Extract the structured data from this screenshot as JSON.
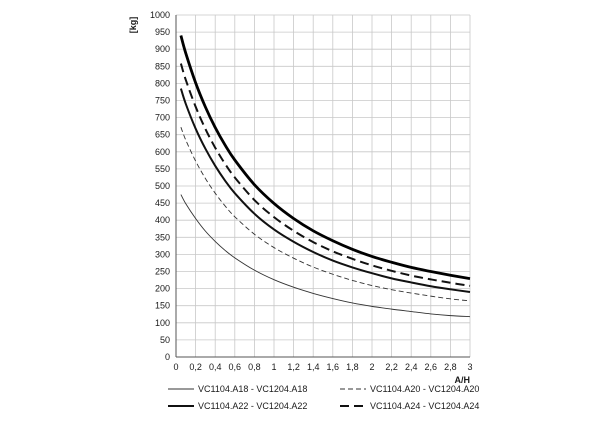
{
  "chart_data": {
    "type": "line",
    "ylabel": "[kg]",
    "xlabel": "A/H",
    "xlim": [
      0,
      3
    ],
    "ylim": [
      0,
      1000
    ],
    "grid": true,
    "legend_position": "bottom",
    "x_ticks": [
      "0",
      "0,2",
      "0,4",
      "0,6",
      "0,8",
      "1",
      "1,2",
      "1,4",
      "1,6",
      "1,8",
      "2",
      "2,2",
      "2,4",
      "2,6",
      "2,8",
      "3"
    ],
    "y_ticks": [
      "0",
      "50",
      "100",
      "150",
      "200",
      "250",
      "300",
      "350",
      "400",
      "450",
      "500",
      "550",
      "600",
      "650",
      "700",
      "750",
      "800",
      "850",
      "900",
      "950",
      "1000"
    ],
    "x": [
      0.05,
      0.1,
      0.2,
      0.3,
      0.4,
      0.5,
      0.6,
      0.8,
      1.0,
      1.2,
      1.4,
      1.6,
      1.8,
      2.0,
      2.2,
      2.4,
      2.6,
      2.8,
      3.0
    ],
    "series": [
      {
        "name": "VC1104.A18 - VC1204.A18",
        "style": "thin-solid",
        "color": "#333333",
        "values": [
          475,
          448,
          405,
          368,
          338,
          312,
          290,
          254,
          226,
          204,
          186,
          171,
          158,
          148,
          140,
          133,
          126,
          121,
          118
        ]
      },
      {
        "name": "VC1104.A20 - VC1204.A20",
        "style": "thin-dashed",
        "color": "#333333",
        "values": [
          672,
          634,
          573,
          522,
          479,
          442,
          410,
          359,
          320,
          289,
          263,
          242,
          224,
          209,
          197,
          187,
          178,
          170,
          164
        ]
      },
      {
        "name": "VC1104.A22 - VC1204.A22",
        "style": "thick-solid",
        "color": "#111111",
        "values": [
          785,
          740,
          668,
          609,
          559,
          516,
          479,
          419,
          373,
          337,
          307,
          282,
          262,
          245,
          230,
          218,
          207,
          198,
          190
        ]
      },
      {
        "name": "VC1104.A24 - VC1204.A24",
        "style": "thick-dashed",
        "color": "#111111",
        "values": [
          858,
          810,
          732,
          667,
          612,
          565,
          525,
          459,
          409,
          369,
          336,
          309,
          287,
          268,
          252,
          238,
          227,
          217,
          208
        ]
      },
      {
        "name": "",
        "style": "heavy-solid",
        "color": "#000000",
        "values": [
          940,
          888,
          802,
          731,
          671,
          620,
          576,
          504,
          449,
          405,
          369,
          340,
          315,
          294,
          277,
          262,
          250,
          239,
          229
        ]
      }
    ]
  }
}
